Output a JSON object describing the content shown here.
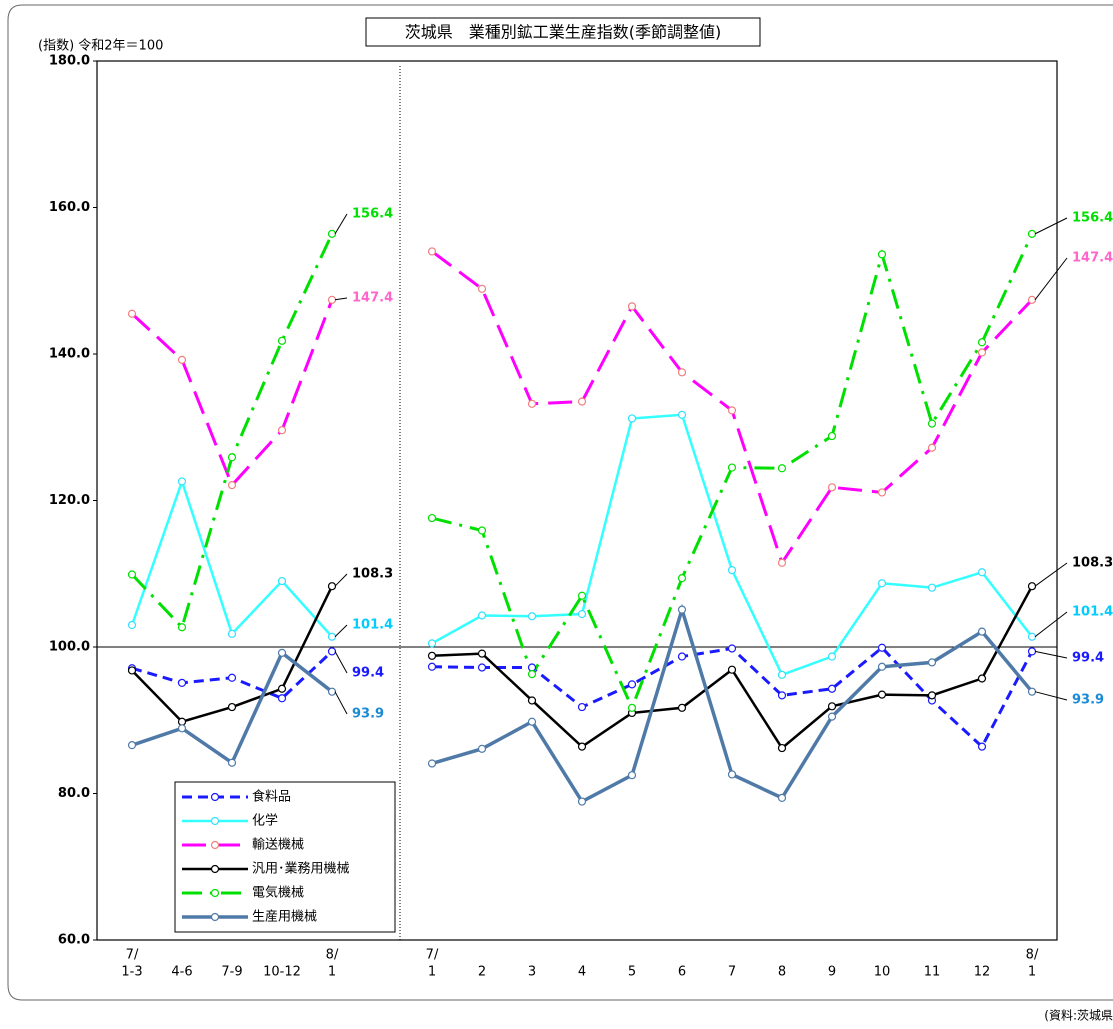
{
  "chart_data": {
    "type": "line",
    "title": "茨城県　業種別鉱工業生産指数(季節調整値)",
    "y_label": "(指数) 令和2年＝100",
    "source": "(資料:茨城県",
    "categories": [
      "1-3",
      "4-6",
      "7-9",
      "10-12",
      "1",
      null,
      "1",
      "2",
      "3",
      "4",
      "5",
      "6",
      "7",
      "8",
      "9",
      "10",
      "11",
      "12",
      "1"
    ],
    "category_prefixes": [
      "7/",
      null,
      null,
      null,
      "8/",
      null,
      "7/",
      null,
      null,
      null,
      null,
      null,
      null,
      null,
      null,
      null,
      null,
      null,
      "8/"
    ],
    "ylim": [
      60,
      180
    ],
    "yticks": [
      {
        "value": 60,
        "label": "60.0"
      },
      {
        "value": 80,
        "label": "80.0"
      },
      {
        "value": 100,
        "label": "100.0"
      },
      {
        "value": 120,
        "label": "120.0"
      },
      {
        "value": 140,
        "label": "140.0"
      },
      {
        "value": 160,
        "label": "160.0"
      },
      {
        "value": 180,
        "label": "180.0"
      }
    ],
    "hline": 100,
    "legend": "lower-left",
    "series": [
      {
        "name": "食料品",
        "color": "#1a1aff",
        "marker_color": "#1a1aff",
        "label_color": "#1a1aff",
        "dash": "10,6",
        "width": 3,
        "values": [
          97.1,
          95.1,
          95.8,
          93.0,
          99.4,
          null,
          97.3,
          97.2,
          97.2,
          91.8,
          94.9,
          98.7,
          99.8,
          93.4,
          94.3,
          99.9,
          92.7,
          86.4,
          99.4
        ]
      },
      {
        "name": "化学",
        "color": "#33ffff",
        "marker_color": "#33e0ff",
        "label_color": "#00ccff",
        "dash": "none",
        "width": 2.5,
        "values": [
          103.0,
          122.6,
          101.8,
          109.0,
          101.4,
          null,
          100.5,
          104.3,
          104.2,
          104.5,
          131.2,
          131.7,
          110.5,
          96.2,
          98.7,
          108.7,
          108.1,
          110.2,
          101.4
        ]
      },
      {
        "name": "輸送機械",
        "color": "#ff00ff",
        "marker_color": "#f08080",
        "label_color": "#ff66cc",
        "dash": "24,10",
        "width": 3,
        "values": [
          145.5,
          139.2,
          122.1,
          129.6,
          147.4,
          null,
          154.0,
          148.9,
          133.2,
          133.5,
          146.5,
          137.5,
          132.3,
          111.5,
          121.8,
          121.1,
          127.2,
          140.2,
          147.4
        ]
      },
      {
        "name": "汎用･業務用機械",
        "color": "#000000",
        "marker_color": "#000000",
        "label_color": "#000000",
        "dash": "none",
        "width": 2.5,
        "values": [
          96.8,
          89.8,
          91.8,
          94.3,
          108.3,
          null,
          98.8,
          99.1,
          92.7,
          86.4,
          91.0,
          91.7,
          96.9,
          86.2,
          91.9,
          93.5,
          93.4,
          95.7,
          108.3
        ]
      },
      {
        "name": "電気機械",
        "color": "#00e000",
        "marker_color": "#00e000",
        "label_color": "#00e000",
        "dash": "20,8,3,8",
        "width": 3,
        "values": [
          109.9,
          102.7,
          125.9,
          141.8,
          156.4,
          null,
          117.6,
          115.9,
          96.3,
          107.0,
          91.7,
          109.4,
          124.5,
          124.4,
          128.8,
          153.6,
          130.5,
          141.6,
          156.4
        ]
      },
      {
        "name": "生産用機械",
        "color": "#4f7aa8",
        "marker_color": "#4f7aa8",
        "label_color": "#1a8ad4",
        "dash": "none",
        "width": 3.5,
        "values": [
          86.6,
          88.9,
          84.2,
          99.2,
          93.9,
          null,
          84.1,
          86.1,
          89.8,
          78.9,
          82.5,
          105.1,
          82.6,
          79.4,
          90.5,
          97.3,
          97.9,
          102.1,
          93.9
        ]
      }
    ]
  }
}
